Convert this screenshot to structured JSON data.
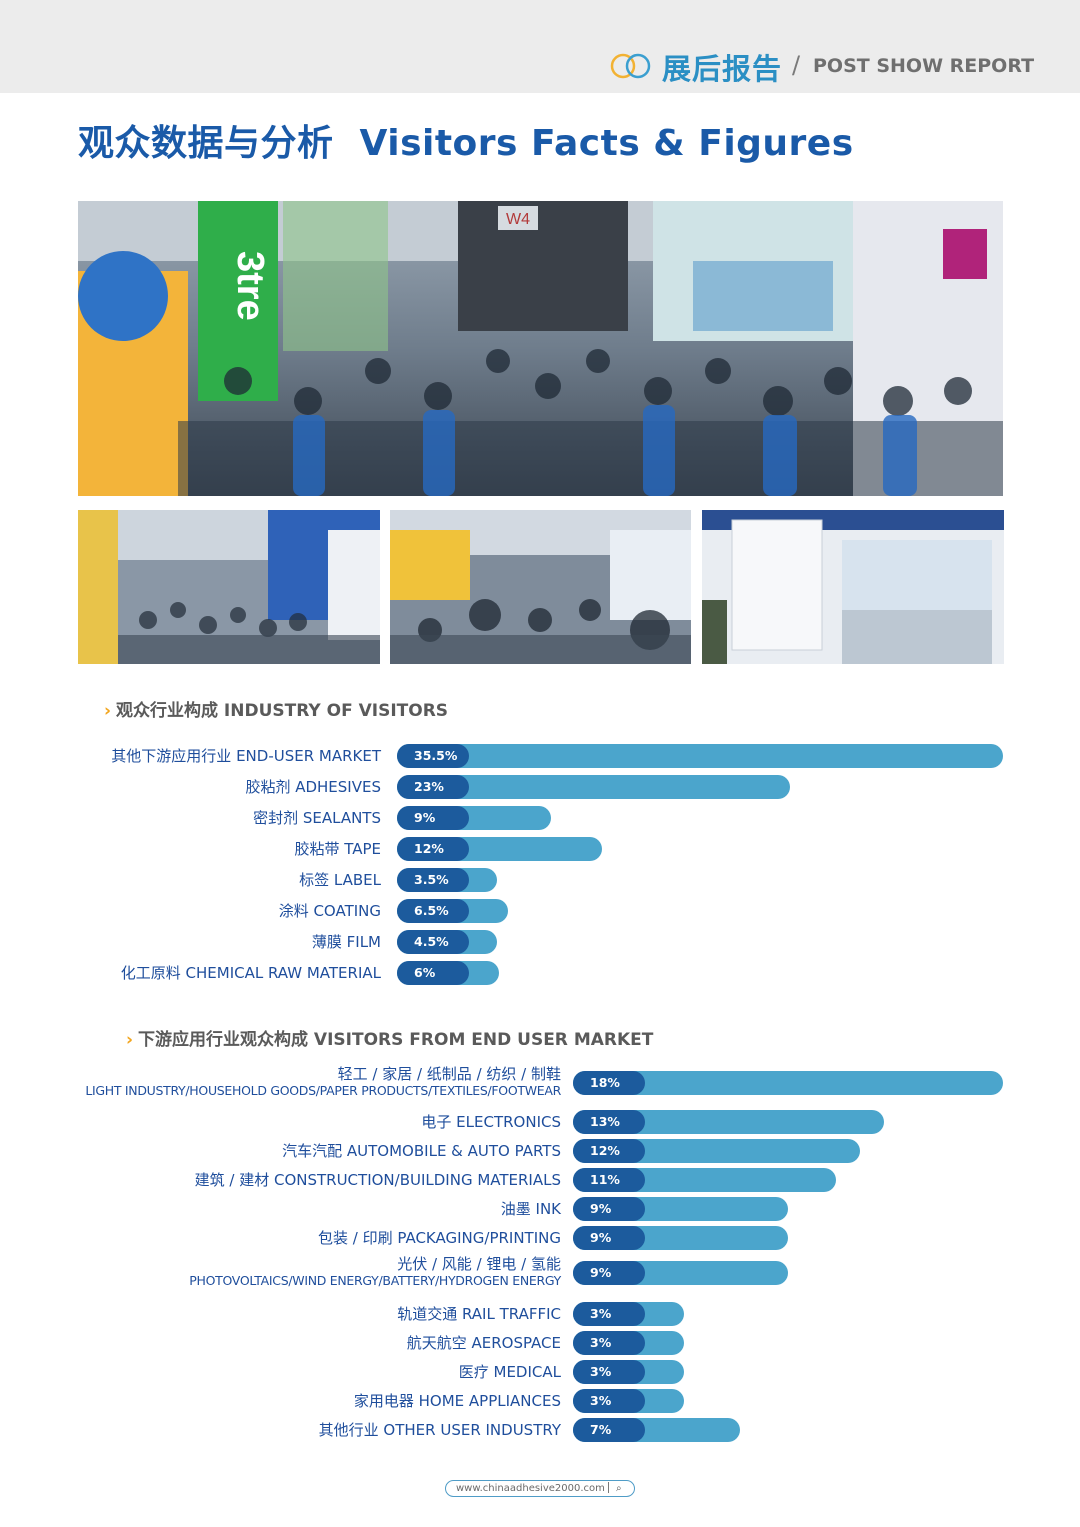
{
  "header": {
    "report_cn": "展后报告",
    "slash": "/",
    "report_en": "POST SHOW REPORT"
  },
  "title": {
    "cn": "观众数据与分析",
    "en": "Visitors Facts & Figures"
  },
  "photos": {
    "main_sign": "W4",
    "main_booth_text": "3tre"
  },
  "section1": {
    "heading": "观众行业构成 INDUSTRY OF VISITORS",
    "items": [
      {
        "label": "其他下游应用行业 END-USER MARKET",
        "value": 35.5,
        "text": "35.5%"
      },
      {
        "label": "胶粘剂 ADHESIVES",
        "value": 23,
        "text": "23%"
      },
      {
        "label": "密封剂 SEALANTS",
        "value": 9,
        "text": "9%"
      },
      {
        "label": "胶粘带 TAPE",
        "value": 12,
        "text": "12%"
      },
      {
        "label": "标签 LABEL",
        "value": 3.5,
        "text": "3.5%"
      },
      {
        "label": "涂料 COATING",
        "value": 6.5,
        "text": "6.5%"
      },
      {
        "label": "薄膜 FILM",
        "value": 4.5,
        "text": "4.5%"
      },
      {
        "label": "化工原料 CHEMICAL RAW MATERIAL",
        "value": 6,
        "text": "6%"
      }
    ]
  },
  "section2": {
    "heading": "下游应用行业观众构成 VISITORS FROM END USER MARKET",
    "items": [
      {
        "label": "轻工 / 家居 / 纸制品 / 纺织 / 制鞋",
        "sub": "LIGHT INDUSTRY/HOUSEHOLD GOODS/PAPER PRODUCTS/TEXTILES/FOOTWEAR",
        "value": 18,
        "text": "18%"
      },
      {
        "label": "电子 ELECTRONICS",
        "value": 13,
        "text": "13%"
      },
      {
        "label": "汽车汽配 AUTOMOBILE & AUTO PARTS",
        "value": 12,
        "text": "12%"
      },
      {
        "label": "建筑 / 建材 CONSTRUCTION/BUILDING MATERIALS",
        "value": 11,
        "text": "11%"
      },
      {
        "label": "油墨 INK",
        "value": 9,
        "text": "9%"
      },
      {
        "label": "包装 / 印刷 PACKAGING/PRINTING",
        "value": 9,
        "text": "9%"
      },
      {
        "label": "光伏 / 风能 / 锂电 / 氢能",
        "sub": "PHOTOVOLTAICS/WIND ENERGY/BATTERY/HYDROGEN ENERGY",
        "value": 9,
        "text": "9%"
      },
      {
        "label": "轨道交通 RAIL TRAFFIC",
        "value": 3,
        "text": "3%"
      },
      {
        "label": "航天航空 AEROSPACE",
        "value": 3,
        "text": "3%"
      },
      {
        "label": "医疗 MEDICAL",
        "value": 3,
        "text": "3%"
      },
      {
        "label": "家用电器 HOME APPLIANCES",
        "value": 3,
        "text": "3%"
      },
      {
        "label": "其他行业 OTHER USER INDUSTRY",
        "value": 7,
        "text": "7%"
      }
    ]
  },
  "footer": {
    "url": "www.chinaadhesive2000.com",
    "icon": "search-icon"
  },
  "colors": {
    "title_blue": "#1a5aa8",
    "pill_dark": "#1c5b9d",
    "bar_light": "#4ba5cc",
    "chevron": "#f2a51d",
    "header_bg": "#ececec"
  },
  "chart_data": [
    {
      "type": "bar",
      "orientation": "horizontal",
      "title": "观众行业构成 INDUSTRY OF VISITORS",
      "categories": [
        "其他下游应用行业 END-USER MARKET",
        "胶粘剂 ADHESIVES",
        "密封剂 SEALANTS",
        "胶粘带 TAPE",
        "标签 LABEL",
        "涂料 COATING",
        "薄膜 FILM",
        "化工原料 CHEMICAL RAW MATERIAL"
      ],
      "values": [
        35.5,
        23,
        9,
        12,
        3.5,
        6.5,
        4.5,
        6
      ],
      "unit": "%"
    },
    {
      "type": "bar",
      "orientation": "horizontal",
      "title": "下游应用行业观众构成 VISITORS FROM END USER MARKET",
      "categories": [
        "轻工 / 家居 / 纸制品 / 纺织 / 制鞋 LIGHT INDUSTRY/HOUSEHOLD GOODS/PAPER PRODUCTS/TEXTILES/FOOTWEAR",
        "电子 ELECTRONICS",
        "汽车汽配 AUTOMOBILE & AUTO PARTS",
        "建筑 / 建材 CONSTRUCTION/BUILDING MATERIALS",
        "油墨 INK",
        "包装 / 印刷 PACKAGING/PRINTING",
        "光伏 / 风能 / 锂电 / 氢能 PHOTOVOLTAICS/WIND ENERGY/BATTERY/HYDROGEN ENERGY",
        "轨道交通 RAIL TRAFFIC",
        "航天航空 AEROSPACE",
        "医疗 MEDICAL",
        "家用电器 HOME APPLIANCES",
        "其他行业 OTHER USER INDUSTRY"
      ],
      "values": [
        18,
        13,
        12,
        11,
        9,
        9,
        9,
        3,
        3,
        3,
        3,
        7
      ],
      "unit": "%"
    }
  ]
}
